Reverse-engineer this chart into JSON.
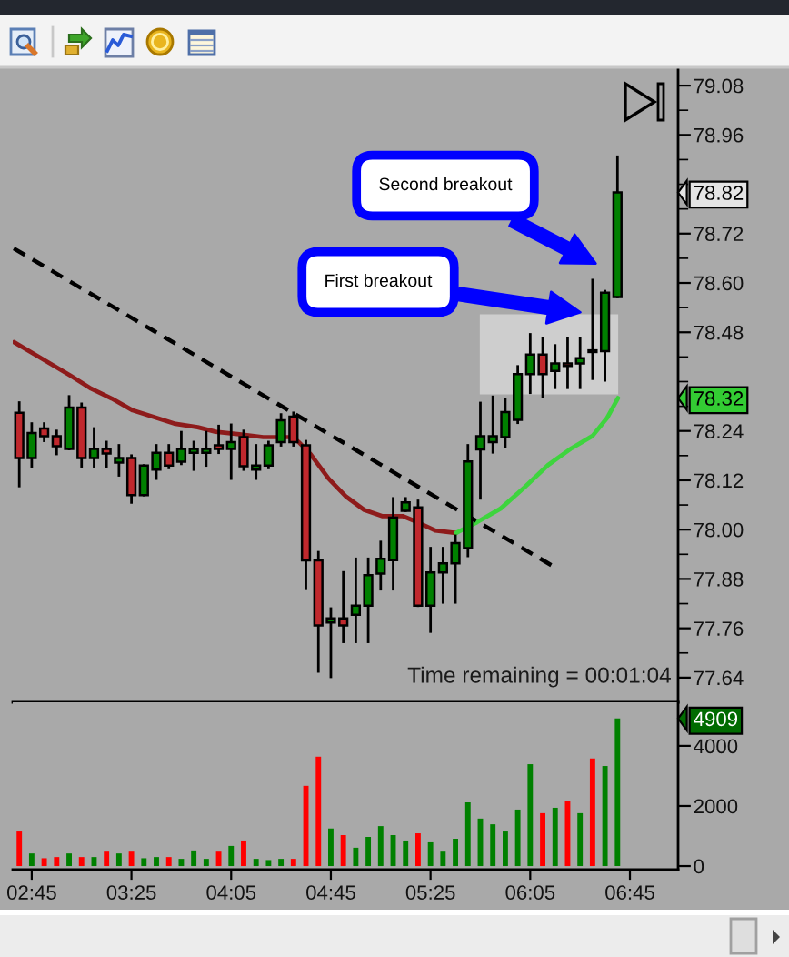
{
  "chart_data": [
    {
      "type": "candlestick",
      "x": [
        2.6667,
        2.75,
        2.8333,
        2.9167,
        3.0,
        3.0833,
        3.1667,
        3.25,
        3.3333,
        3.4167,
        3.5,
        3.5833,
        3.6667,
        3.75,
        3.8333,
        3.9167,
        4.0,
        4.0833,
        4.1667,
        4.25,
        4.3333,
        4.4167,
        4.5,
        4.5833,
        4.6667,
        4.75,
        4.8333,
        4.9167,
        5.0,
        5.0833,
        5.1667,
        5.25,
        5.3333,
        5.4167,
        5.5,
        5.5833,
        5.6667,
        5.75,
        5.8333,
        5.9167,
        6.0,
        6.0833,
        6.1667,
        6.25,
        6.3333,
        6.4167,
        6.5,
        6.5833,
        6.6667
      ],
      "ohlc": [
        [
          78.284,
          78.309,
          78.106,
          78.174
        ],
        [
          78.174,
          78.258,
          78.154,
          78.235
        ],
        [
          78.246,
          78.258,
          78.216,
          78.227
        ],
        [
          78.227,
          78.24,
          78.184,
          78.203
        ],
        [
          78.196,
          78.324,
          78.196,
          78.297
        ],
        [
          78.297,
          78.306,
          78.154,
          78.174
        ],
        [
          78.174,
          78.246,
          78.154,
          78.196
        ],
        [
          78.196,
          78.213,
          78.154,
          78.185
        ],
        [
          78.163,
          78.205,
          78.132,
          78.174
        ],
        [
          78.174,
          78.18,
          78.066,
          78.084
        ],
        [
          78.084,
          78.156,
          78.084,
          78.156
        ],
        [
          78.146,
          78.205,
          78.124,
          78.187
        ],
        [
          78.187,
          78.205,
          78.15,
          78.156
        ],
        [
          78.165,
          78.237,
          78.16,
          78.196
        ],
        [
          78.187,
          78.213,
          78.146,
          78.196
        ],
        [
          78.187,
          78.237,
          78.156,
          78.196
        ],
        [
          78.205,
          78.252,
          78.187,
          78.196
        ],
        [
          78.196,
          78.255,
          78.124,
          78.213
        ],
        [
          78.225,
          78.24,
          78.146,
          78.154
        ],
        [
          78.146,
          78.205,
          78.124,
          78.156
        ],
        [
          78.156,
          78.213,
          78.15,
          78.205
        ],
        [
          78.213,
          78.28,
          78.205,
          78.266
        ],
        [
          78.275,
          78.284,
          78.205,
          78.213
        ],
        [
          78.205,
          78.215,
          77.856,
          77.925
        ],
        [
          77.925,
          77.945,
          77.655,
          77.767
        ],
        [
          77.774,
          77.808,
          77.642,
          77.784
        ],
        [
          77.784,
          77.896,
          77.727,
          77.767
        ],
        [
          77.793,
          77.929,
          77.727,
          77.815
        ],
        [
          77.815,
          77.929,
          77.727,
          77.889
        ],
        [
          77.893,
          77.97,
          77.855,
          77.929
        ],
        [
          77.926,
          78.076,
          77.855,
          78.029
        ],
        [
          78.046,
          78.076,
          78.046,
          78.066
        ],
        [
          78.054,
          78.07,
          77.815,
          77.815
        ],
        [
          77.815,
          77.955,
          77.752,
          77.896
        ],
        [
          77.896,
          77.955,
          77.823,
          77.918
        ],
        [
          77.918,
          77.985,
          77.823,
          77.967
        ],
        [
          77.955,
          78.205,
          77.936,
          78.166
        ],
        [
          78.195,
          78.308,
          78.076,
          78.227
        ],
        [
          78.213,
          78.323,
          78.188,
          78.227
        ],
        [
          78.225,
          78.316,
          78.202,
          78.286
        ],
        [
          78.267,
          78.397,
          78.26,
          78.378
        ],
        [
          78.378,
          78.475,
          78.333,
          78.426
        ],
        [
          78.426,
          78.466,
          78.323,
          78.378
        ],
        [
          78.386,
          78.448,
          78.345,
          78.404
        ],
        [
          78.404,
          78.466,
          78.345,
          78.398
        ],
        [
          78.404,
          78.466,
          78.345,
          78.417
        ],
        [
          78.436,
          78.607,
          78.367,
          78.432
        ],
        [
          78.434,
          78.58,
          78.363,
          78.576
        ],
        [
          78.566,
          78.907,
          78.566,
          78.82
        ]
      ],
      "colors": [
        "#c0282d",
        "#008000",
        "#c0282d",
        "#c0282d",
        "#008000",
        "#c0282d",
        "#008000",
        "#c0282d",
        "#008000",
        "#c0282d",
        "#008000",
        "#008000",
        "#c0282d",
        "#008000",
        "#008000",
        "#008000",
        "#c0282d",
        "#008000",
        "#c0282d",
        "#008000",
        "#008000",
        "#008000",
        "#c0282d",
        "#c0282d",
        "#c0282d",
        "#008000",
        "#c0282d",
        "#008000",
        "#008000",
        "#008000",
        "#008000",
        "#008000",
        "#c0282d",
        "#008000",
        "#008000",
        "#008000",
        "#008000",
        "#008000",
        "#008000",
        "#008000",
        "#008000",
        "#008000",
        "#c0282d",
        "#008000",
        "#c0282d",
        "#008000",
        "#c0282d",
        "#008000",
        "#008000"
      ],
      "series": [
        {
          "type": "line",
          "color": "#8e1b1b",
          "x": [
            2.632,
            2.79,
            3.008,
            3.147,
            3.285,
            3.425,
            3.583,
            3.702,
            3.86,
            3.98,
            4.14,
            4.298,
            4.497,
            4.535,
            4.615,
            4.735,
            4.853,
            4.973,
            5.092,
            5.23,
            5.33,
            5.448,
            5.587
          ],
          "values": [
            78.456,
            78.422,
            78.375,
            78.343,
            78.319,
            78.29,
            78.272,
            78.258,
            78.249,
            78.238,
            78.232,
            78.225,
            78.225,
            78.213,
            78.183,
            78.124,
            78.08,
            78.048,
            78.033,
            78.033,
            78.018,
            77.998,
            77.992
          ]
        },
        {
          "type": "line",
          "color": "#3ed43e",
          "x": [
            5.587,
            5.727,
            5.885,
            6.043,
            6.202,
            6.36,
            6.5,
            6.598,
            6.67
          ],
          "values": [
            77.992,
            78.018,
            78.051,
            78.102,
            78.157,
            78.198,
            78.228,
            78.272,
            78.32
          ]
        },
        {
          "type": "line",
          "color": "#000000",
          "line_style": "dashed",
          "x": [
            2.63,
            6.25
          ],
          "values": [
            78.684,
            77.908
          ]
        }
      ],
      "xlim": [
        2.623,
        7.072
      ],
      "ylim": [
        77.58,
        79.12
      ],
      "yticks": [
        79.08,
        {
          "value": 79.02,
          "label": null
        },
        78.96,
        {
          "value": 78.9,
          "label": null
        },
        {
          "value": 78.84,
          "label": null
        },
        {
          "value": 78.78,
          "label": null
        },
        78.72,
        {
          "value": 78.66,
          "label": null
        },
        {
          "value": 78.6,
          "label": "78.60"
        },
        {
          "value": 78.54,
          "label": null
        },
        78.48,
        {
          "value": 78.42,
          "label": null
        },
        {
          "value": 78.36,
          "label": null
        },
        {
          "value": 78.3,
          "label": null
        },
        78.24,
        {
          "value": 78.18,
          "label": null
        },
        78.12,
        {
          "value": 78.06,
          "label": null
        },
        {
          "value": 78.0,
          "label": "78.00"
        },
        {
          "value": 77.94,
          "label": null
        },
        77.88,
        {
          "value": 77.82,
          "label": null
        },
        77.76,
        {
          "value": 77.7,
          "label": null
        },
        77.64,
        78.82,
        78.32
      ],
      "tick_labels": "y",
      "annotations": [
        "Second breakout",
        "First breakout",
        "Time remaining = 00:01:04"
      ]
    },
    {
      "type": "bar",
      "x": [
        2.6667,
        2.75,
        2.8333,
        2.9167,
        3.0,
        3.0833,
        3.1667,
        3.25,
        3.3333,
        3.4167,
        3.5,
        3.5833,
        3.6667,
        3.75,
        3.8333,
        3.9167,
        4.0,
        4.0833,
        4.1667,
        4.25,
        4.3333,
        4.4167,
        4.5,
        4.5833,
        4.6667,
        4.75,
        4.8333,
        4.9167,
        5.0,
        5.0833,
        5.1667,
        5.25,
        5.3333,
        5.4167,
        5.5,
        5.5833,
        5.6667,
        5.75,
        5.8333,
        5.9167,
        6.0,
        6.0833,
        6.1667,
        6.25,
        6.3333,
        6.4167,
        6.5,
        6.5833,
        6.6667
      ],
      "values": [
        1150,
        420,
        260,
        300,
        420,
        300,
        300,
        480,
        420,
        480,
        260,
        300,
        300,
        240,
        520,
        240,
        480,
        670,
        850,
        240,
        200,
        240,
        240,
        2670,
        3640,
        1250,
        1030,
        610,
        970,
        1330,
        1030,
        850,
        1090,
        790,
        480,
        910,
        2120,
        1580,
        1390,
        1150,
        1880,
        3390,
        1760,
        1940,
        2180,
        1760,
        3580,
        3330,
        4909
      ],
      "colors": [
        "#ff0000",
        "#008000",
        "#ff0000",
        "#ff0000",
        "#008000",
        "#ff0000",
        "#008000",
        "#ff0000",
        "#008000",
        "#ff0000",
        "#008000",
        "#008000",
        "#ff0000",
        "#008000",
        "#008000",
        "#008000",
        "#ff0000",
        "#008000",
        "#ff0000",
        "#008000",
        "#008000",
        "#008000",
        "#ff0000",
        "#ff0000",
        "#ff0000",
        "#008000",
        "#ff0000",
        "#008000",
        "#008000",
        "#008000",
        "#008000",
        "#008000",
        "#ff0000",
        "#008000",
        "#008000",
        "#008000",
        "#008000",
        "#008000",
        "#008000",
        "#008000",
        "#008000",
        "#008000",
        "#ff0000",
        "#008000",
        "#ff0000",
        "#008000",
        "#ff0000",
        "#008000",
        "#008000"
      ],
      "xlim": [
        2.623,
        7.072
      ],
      "ylim": [
        -120,
        5450
      ],
      "xticks": [
        {
          "value": 2.75,
          "label": "02:45"
        },
        {
          "value": 3.4167,
          "label": "03:25"
        },
        {
          "value": 4.0833,
          "label": "04:05"
        },
        {
          "value": 4.75,
          "label": "04:45"
        },
        {
          "value": 5.4167,
          "label": "05:25"
        },
        {
          "value": 6.0833,
          "label": "06:05"
        },
        {
          "value": 6.75,
          "label": "06:45"
        }
      ],
      "yticks": [
        0,
        2000,
        4000,
        4909
      ]
    }
  ]
}
